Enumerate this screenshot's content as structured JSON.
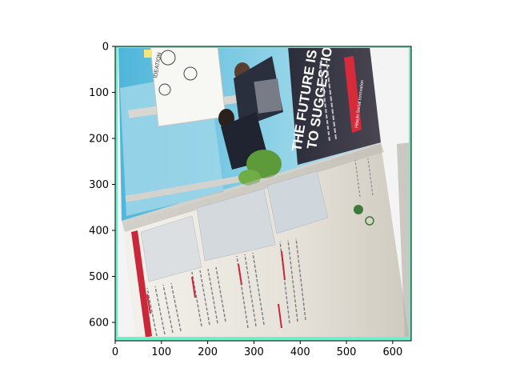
{
  "chart_data": {
    "type": "image",
    "title": "",
    "xlabel": "",
    "ylabel": "",
    "xlim": [
      0,
      640
    ],
    "ylim": [
      640,
      0
    ],
    "xticks": [
      0,
      100,
      200,
      300,
      400,
      500,
      600
    ],
    "yticks": [
      0,
      100,
      200,
      300,
      400,
      500,
      600
    ],
    "grid": false,
    "legend": "none",
    "image_content": {
      "headline_line1": "THE FUTURE IS C",
      "headline_line2": "TO SUGGESTIO",
      "banner_text": "Hitachi Social Innovation",
      "whiteboard_text": "IDEATION",
      "colors": {
        "sky": "#8fd0e6",
        "page": "#ece8df",
        "banner": "#d62b3b",
        "accent_red": "#c8283a",
        "frame_edge": "#6ff0c8"
      }
    }
  }
}
